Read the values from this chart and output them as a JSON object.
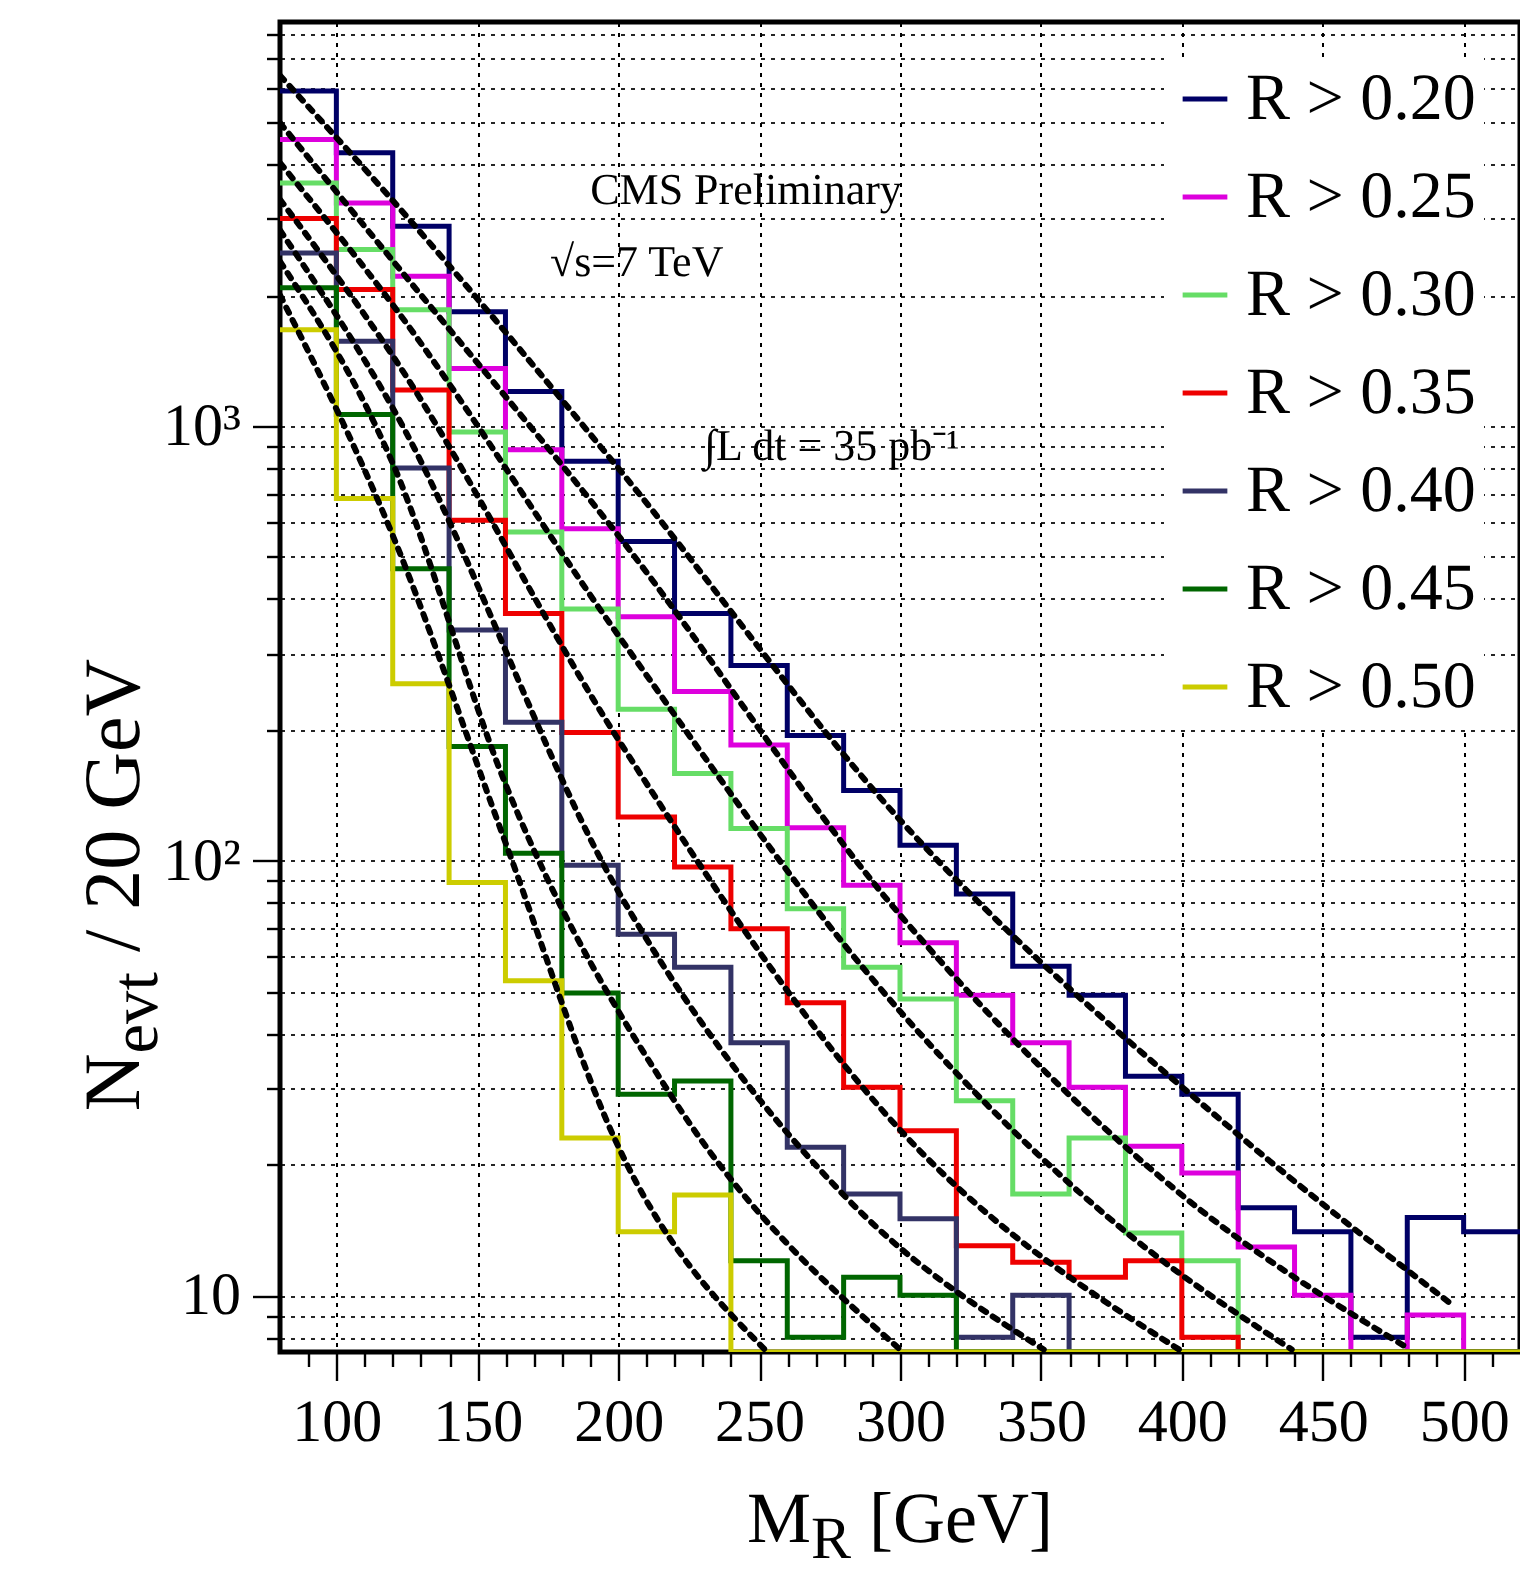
{
  "chart_data": {
    "type": "histogram",
    "xlabel": "M$_{R}$ [GeV]",
    "ylabel": "N$_{evt}$ / 20 GeV",
    "annotations": [
      "CMS Preliminary",
      "√s=7 TeV",
      "∫L dt = 35 pb⁻¹"
    ],
    "bins": [
      80,
      100,
      120,
      140,
      160,
      180,
      200,
      220,
      240,
      260,
      280,
      300,
      320,
      340,
      360,
      380,
      400,
      420,
      440,
      460,
      480,
      500,
      520
    ],
    "series": [
      {
        "name": "R > 0.20",
        "color": "#000066",
        "values": [
          5900,
          4250,
          2880,
          1830,
          1200,
          829,
          542,
          370,
          281,
          194,
          145,
          108.5,
          83.8,
          57.1,
          49,
          31.9,
          29,
          15.9,
          14,
          8,
          15.1,
          14
        ]
      },
      {
        "name": "R > 0.25",
        "color": "#dd00dd",
        "values": [
          4560,
          3260,
          2210,
          1355,
          881,
          580,
          364,
          245,
          184.5,
          119,
          87.7,
          64.7,
          49,
          38.1,
          30.1,
          22,
          19.1,
          12.9,
          10,
          null,
          9,
          null
        ]
      },
      {
        "name": "R > 0.30",
        "color": "#66dd66",
        "values": [
          3620,
          2545,
          1850,
          968,
          570,
          379,
          223,
          158.5,
          118.5,
          77.5,
          56.8,
          48,
          28,
          17.1,
          23,
          13.9,
          12,
          null,
          null,
          null,
          null,
          null
        ]
      },
      {
        "name": "R > 0.35",
        "color": "#ee0000",
        "values": [
          3000,
          2060,
          1210,
          607,
          370,
          197,
          126,
          96.6,
          69.7,
          47.1,
          30.1,
          23.9,
          13,
          11.9,
          11,
          12,
          8,
          null,
          null,
          null,
          null,
          null
        ]
      },
      {
        "name": "R > 0.40",
        "color": "#333366",
        "values": [
          2500,
          1566,
          800,
          339,
          208,
          97.6,
          67.7,
          56.8,
          38.1,
          21.9,
          17.1,
          15,
          8,
          10,
          null,
          null,
          null,
          null,
          null,
          null,
          null,
          null
        ]
      },
      {
        "name": "R > 0.45",
        "color": "#006600",
        "values": [
          2080,
          1062,
          469,
          183,
          104,
          49.6,
          29,
          31.1,
          12,
          8,
          11,
          10,
          null,
          null,
          null,
          null,
          null,
          null,
          null,
          null,
          null,
          null
        ]
      },
      {
        "name": "R > 0.50",
        "color": "#cccc00",
        "values": [
          1664,
          681,
          255,
          89,
          52.9,
          23,
          14,
          17,
          null,
          null,
          null,
          null,
          null,
          null,
          null,
          null,
          null,
          null,
          null,
          null,
          null,
          null
        ]
      },
      {
        "type": "line",
        "color": "#000000",
        "line_style": "dotted",
        "x": [
          80,
          120,
          200,
          300,
          420,
          496
        ],
        "values": [
          6400,
          3300,
          800,
          124,
          23.4,
          9.5
        ]
      },
      {
        "type": "line",
        "color": "#000000",
        "line_style": "dotted",
        "x": [
          80,
          120,
          200,
          300,
          400,
          481
        ],
        "values": [
          4980,
          2400,
          560,
          75,
          17,
          7.5
        ]
      },
      {
        "type": "line",
        "color": "#000000",
        "line_style": "dotted",
        "x": [
          80,
          120,
          200,
          300,
          380,
          439
        ],
        "values": [
          4030,
          1900,
          330,
          45,
          14,
          7.5
        ]
      },
      {
        "type": "line",
        "color": "#000000",
        "line_style": "dotted",
        "x": [
          80,
          120,
          200,
          300,
          399
        ],
        "values": [
          3320,
          1450,
          190,
          24,
          7.5
        ]
      },
      {
        "type": "line",
        "color": "#000000",
        "line_style": "dotted",
        "x": [
          80,
          120,
          200,
          280,
          351
        ],
        "values": [
          2820,
          1100,
          85,
          17,
          7.5
        ]
      },
      {
        "type": "line",
        "color": "#000000",
        "line_style": "dotted",
        "x": [
          80,
          120,
          160,
          220,
          300
        ],
        "values": [
          2390,
          820,
          150,
          28,
          7.5
        ]
      },
      {
        "type": "line",
        "color": "#000000",
        "line_style": "dotted",
        "x": [
          80,
          120,
          160,
          200,
          252
        ],
        "values": [
          2000,
          560,
          110,
          22,
          7.5
        ]
      }
    ],
    "xlim": [
      80,
      520
    ],
    "ylim": [
      7.4,
      8500
    ],
    "log": "y",
    "grid": true,
    "legend": "top right",
    "xticks": [
      {
        "value": 90,
        "label": null
      },
      100,
      {
        "value": 110,
        "label": null
      },
      {
        "value": 120,
        "label": null
      },
      {
        "value": 130,
        "label": null
      },
      {
        "value": 140,
        "label": null
      },
      150,
      {
        "value": 160,
        "label": null
      },
      {
        "value": 170,
        "label": null
      },
      {
        "value": 180,
        "label": null
      },
      {
        "value": 190,
        "label": null
      },
      200,
      {
        "value": 210,
        "label": null
      },
      {
        "value": 220,
        "label": null
      },
      {
        "value": 230,
        "label": null
      },
      {
        "value": 240,
        "label": null
      },
      250,
      {
        "value": 260,
        "label": null
      },
      {
        "value": 270,
        "label": null
      },
      {
        "value": 280,
        "label": null
      },
      {
        "value": 290,
        "label": null
      },
      300,
      {
        "value": 310,
        "label": null
      },
      {
        "value": 320,
        "label": null
      },
      {
        "value": 330,
        "label": null
      },
      {
        "value": 340,
        "label": null
      },
      350,
      {
        "value": 360,
        "label": null
      },
      {
        "value": 370,
        "label": null
      },
      {
        "value": 380,
        "label": null
      },
      {
        "value": 390,
        "label": null
      },
      400,
      {
        "value": 410,
        "label": null
      },
      {
        "value": 420,
        "label": null
      },
      {
        "value": 430,
        "label": null
      },
      {
        "value": 440,
        "label": null
      },
      450,
      {
        "value": 460,
        "label": null
      },
      {
        "value": 470,
        "label": null
      },
      {
        "value": 480,
        "label": null
      },
      {
        "value": 490,
        "label": null
      },
      500,
      {
        "value": 510,
        "label": null
      }
    ],
    "yticks": [
      {
        "value": 8,
        "label": null
      },
      {
        "value": 9,
        "label": null
      },
      10,
      {
        "value": 20,
        "label": null
      },
      {
        "value": 30,
        "label": null
      },
      {
        "value": 40,
        "label": null
      },
      {
        "value": 50,
        "label": null
      },
      {
        "value": 60,
        "label": null
      },
      {
        "value": 70,
        "label": null
      },
      {
        "value": 80,
        "label": null
      },
      {
        "value": 90,
        "label": null
      },
      {
        "value": 100,
        "label": "10²"
      },
      {
        "value": 200,
        "label": null
      },
      {
        "value": 300,
        "label": null
      },
      {
        "value": 400,
        "label": null
      },
      {
        "value": 500,
        "label": null
      },
      {
        "value": 600,
        "label": null
      },
      {
        "value": 700,
        "label": null
      },
      {
        "value": 800,
        "label": null
      },
      {
        "value": 900,
        "label": null
      },
      {
        "value": 1000,
        "label": "10³"
      },
      {
        "value": 2000,
        "label": null
      },
      {
        "value": 3000,
        "label": null
      },
      {
        "value": 4000,
        "label": null
      },
      {
        "value": 5000,
        "label": null
      },
      {
        "value": 6000,
        "label": null
      },
      {
        "value": 7000,
        "label": null
      },
      {
        "value": 8000,
        "label": null
      }
    ]
  }
}
